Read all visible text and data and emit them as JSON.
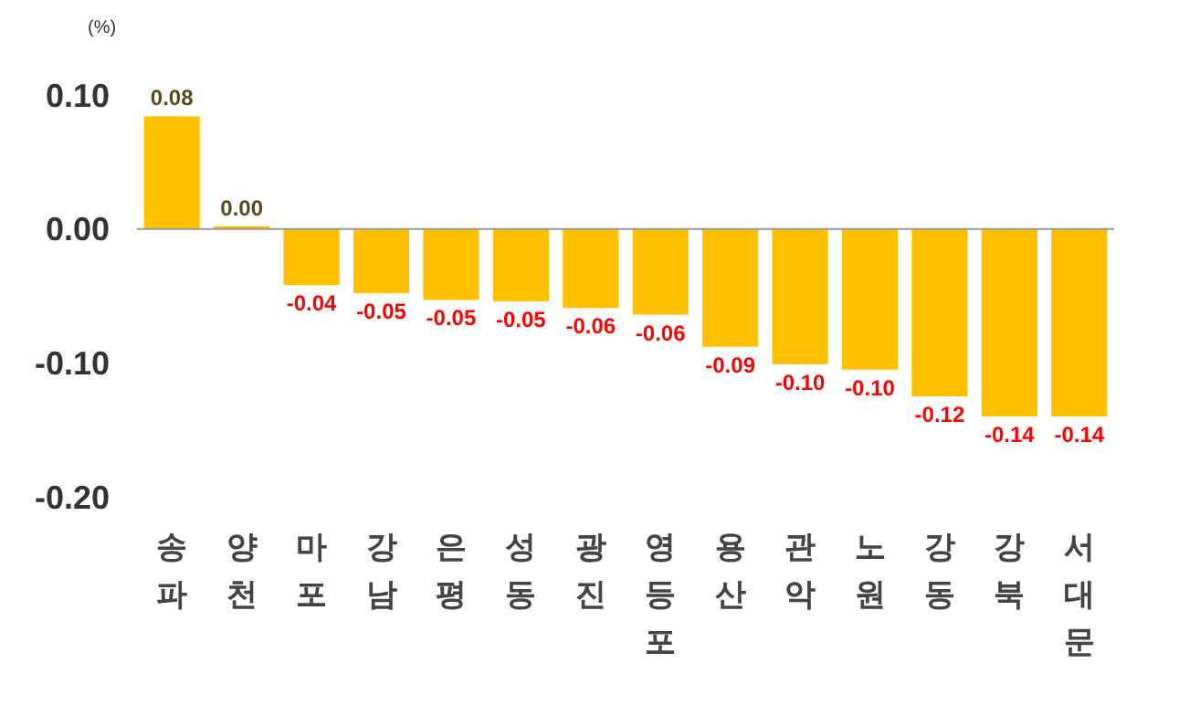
{
  "chart_data": {
    "type": "bar",
    "ylabel": "(%)",
    "categories": [
      "송파",
      "양천",
      "마포",
      "강남",
      "은평",
      "성동",
      "광진",
      "영등포",
      "용산",
      "관악",
      "노원",
      "강동",
      "강북",
      "서대문"
    ],
    "values": [
      0.084,
      0.002,
      -0.042,
      -0.048,
      -0.053,
      -0.054,
      -0.059,
      -0.064,
      -0.088,
      -0.101,
      -0.105,
      -0.125,
      -0.14,
      -0.14
    ],
    "value_labels": [
      "0.08",
      "0.00",
      "-0.04",
      "-0.05",
      "-0.05",
      "-0.05",
      "-0.06",
      "-0.06",
      "-0.09",
      "-0.10",
      "-0.10",
      "-0.12",
      "-0.14",
      "-0.14"
    ],
    "color": "#ffc000",
    "ylim": [
      -0.2,
      0.1
    ],
    "yticks": [
      {
        "value": 0.1,
        "label": "0.10"
      },
      {
        "value": 0,
        "label": "0.00"
      },
      {
        "value": -0.1,
        "label": "-0.10"
      },
      {
        "value": -0.2,
        "label": "-0.20"
      }
    ],
    "legend": false
  }
}
